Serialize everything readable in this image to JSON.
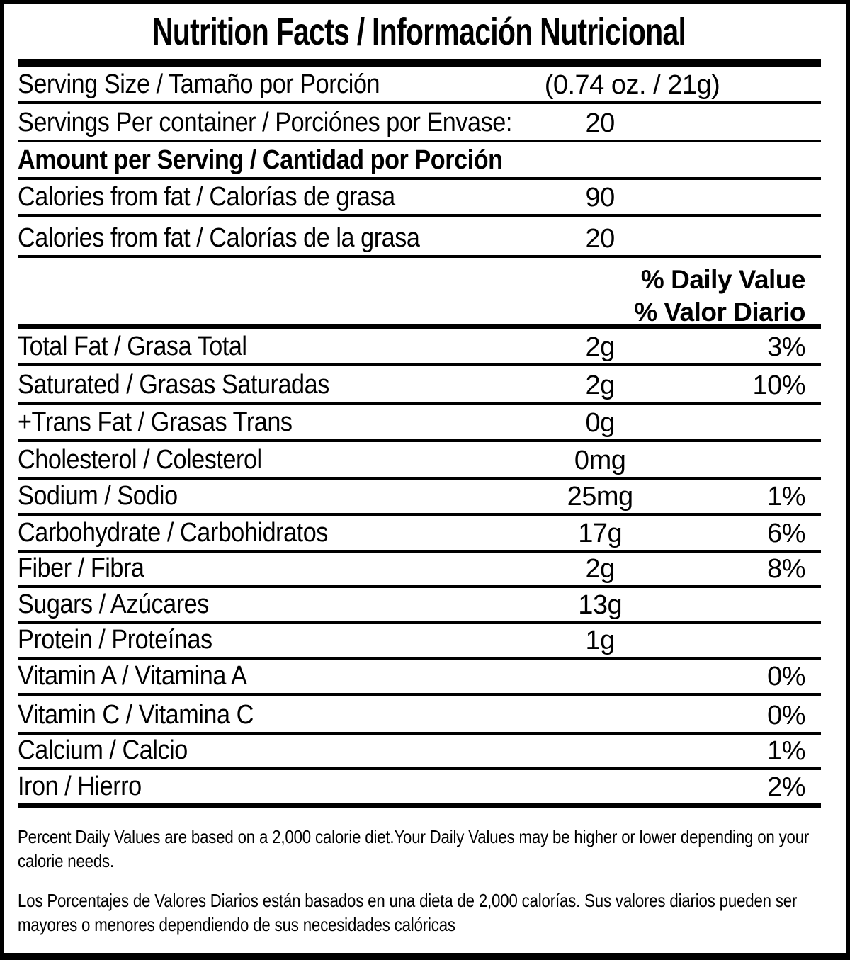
{
  "title": "Nutrition Facts / Información Nutricional",
  "serving": {
    "size_label": "Serving Size / Tamaño por Porción",
    "size_value": "(0.74 oz. / 21g)",
    "per_container_label": "Servings Per container / Porciónes por Envase:",
    "per_container_value": "20"
  },
  "amount_header": "Amount per Serving / Cantidad por Porción",
  "calories_rows": [
    {
      "label": "Calories from fat / Calorías de grasa",
      "value": "90"
    },
    {
      "label": "Calories from fat / Calorías de la grasa",
      "value": "20"
    }
  ],
  "daily_value_header": {
    "line1": "% Daily Value",
    "line2": "% Valor Diario"
  },
  "nutrients": [
    {
      "label": "Total Fat / Grasa Total",
      "value": "2g",
      "dv": "3%"
    },
    {
      "label": "Saturated / Grasas Saturadas",
      "value": "2g",
      "dv": "10%"
    },
    {
      "label": "+Trans Fat / Grasas Trans",
      "value": "0g",
      "dv": ""
    },
    {
      "label": "Cholesterol / Colesterol",
      "value": "0mg",
      "dv": ""
    },
    {
      "label": "Sodium / Sodio",
      "value": "25mg",
      "dv": "1%"
    },
    {
      "label": "Carbohydrate / Carbohidratos",
      "value": "17g",
      "dv": "6%"
    },
    {
      "label": "Fiber / Fibra",
      "value": "2g",
      "dv": "8%"
    },
    {
      "label": "Sugars / Azúcares",
      "value": "13g",
      "dv": ""
    },
    {
      "label": "Protein / Proteínas",
      "value": "1g",
      "dv": ""
    },
    {
      "label": "Vitamin A / Vitamina A",
      "value": "",
      "dv": "0%"
    },
    {
      "label": "Vitamin C / Vitamina C",
      "value": "",
      "dv": "0%"
    },
    {
      "label": "Calcium / Calcio",
      "value": "",
      "dv": "1%"
    },
    {
      "label": "Iron / Hierro",
      "value": "",
      "dv": "2%"
    }
  ],
  "footnotes": {
    "english": "Percent Daily Values are based on a 2,000 calorie diet.Your Daily Values may be higher or lower depending on your calorie needs.",
    "spanish": "Los Porcentajes de Valores Diarios están basados en una dieta de 2,000 calorías. Sus valores diarios pueden ser mayores o menores dependiendo de sus necesidades calóricas"
  },
  "colors": {
    "text": "#000000",
    "background": "#ffffff",
    "rule": "#000000"
  }
}
